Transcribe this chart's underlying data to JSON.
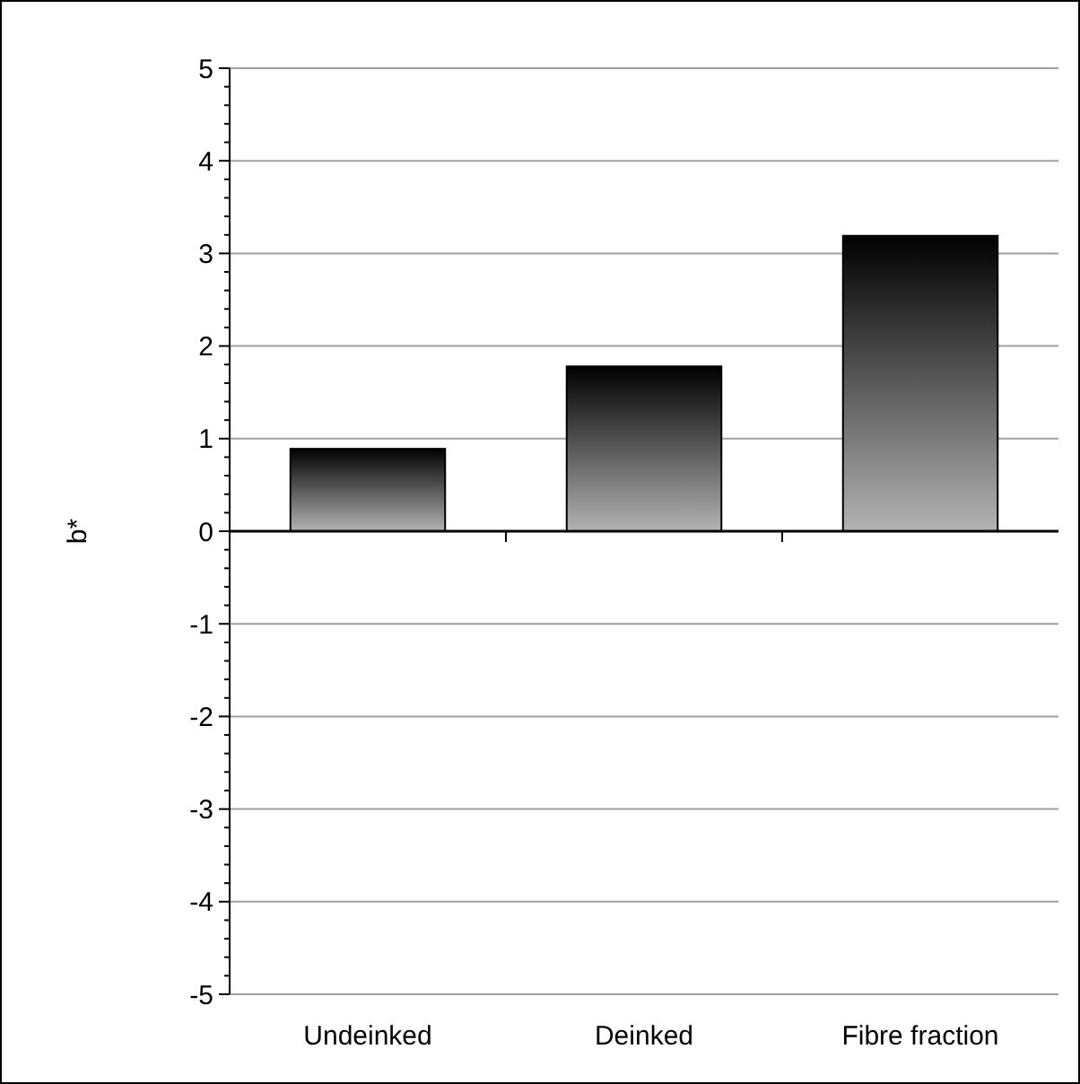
{
  "chart_data": {
    "type": "bar",
    "ylabel": "b*",
    "categories": [
      "Undeinked",
      "Deinked",
      "Fibre fraction"
    ],
    "values": [
      0.89,
      1.78,
      3.19
    ],
    "color": "#000000",
    "ylim": [
      -5,
      5
    ],
    "yticks": [
      -5,
      {
        "value": -4.8,
        "label": null
      },
      {
        "value": -4.6,
        "label": null
      },
      {
        "value": -4.4,
        "label": null
      },
      {
        "value": -4.2,
        "label": null
      },
      -4,
      {
        "value": -3.8,
        "label": null
      },
      {
        "value": -3.6,
        "label": null
      },
      {
        "value": -3.4,
        "label": null
      },
      {
        "value": -3.2,
        "label": null
      },
      -3,
      {
        "value": -2.8,
        "label": null
      },
      {
        "value": -2.6,
        "label": null
      },
      {
        "value": -2.4,
        "label": null
      },
      {
        "value": -2.2,
        "label": null
      },
      -2,
      {
        "value": -1.8,
        "label": null
      },
      {
        "value": -1.6,
        "label": null
      },
      {
        "value": -1.4,
        "label": null
      },
      {
        "value": -1.2,
        "label": null
      },
      -1,
      {
        "value": -0.8,
        "label": null
      },
      {
        "value": -0.6,
        "label": null
      },
      {
        "value": -0.4,
        "label": null
      },
      {
        "value": -0.2,
        "label": null
      },
      0,
      {
        "value": 0.2,
        "label": null
      },
      {
        "value": 0.4,
        "label": null
      },
      {
        "value": 0.6,
        "label": null
      },
      {
        "value": 0.8,
        "label": null
      },
      1,
      {
        "value": 1.2,
        "label": null
      },
      {
        "value": 1.4,
        "label": null
      },
      {
        "value": 1.6,
        "label": null
      },
      {
        "value": 1.8,
        "label": null
      },
      2,
      {
        "value": 2.2,
        "label": null
      },
      {
        "value": 2.4,
        "label": null
      },
      {
        "value": 2.6,
        "label": null
      },
      {
        "value": 2.8,
        "label": null
      },
      3,
      {
        "value": 3.2,
        "label": null
      },
      {
        "value": 3.4,
        "label": null
      },
      {
        "value": 3.6,
        "label": null
      },
      {
        "value": 3.8,
        "label": null
      },
      4,
      {
        "value": 4.2,
        "label": null
      },
      {
        "value": 4.4,
        "label": null
      },
      {
        "value": 4.6,
        "label": null
      },
      {
        "value": 4.8,
        "label": null
      },
      5
    ],
    "grid": "y"
  }
}
